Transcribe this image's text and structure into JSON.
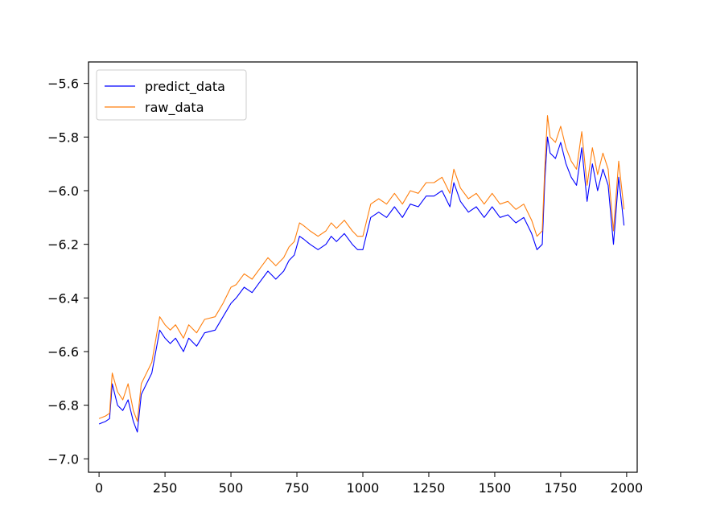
{
  "chart_data": {
    "type": "line",
    "title": "",
    "xlabel": "",
    "ylabel": "",
    "xlim": [
      -40,
      2040
    ],
    "ylim": [
      -7.05,
      -5.52
    ],
    "xticks": [
      0,
      250,
      500,
      750,
      1000,
      1250,
      1500,
      1750,
      2000
    ],
    "yticks": [
      -7.0,
      -6.8,
      -6.6,
      -6.4,
      -6.2,
      -6.0,
      -5.8,
      -5.6
    ],
    "xtick_labels": [
      "0",
      "250",
      "500",
      "750",
      "1000",
      "1250",
      "1500",
      "1750",
      "2000"
    ],
    "ytick_labels": [
      "−7.0",
      "−6.8",
      "−6.6",
      "−6.4",
      "−6.2",
      "−6.0",
      "−5.8",
      "−5.6"
    ],
    "grid": false,
    "legend_position": "top-left",
    "series": [
      {
        "name": "predict_data",
        "color": "#0000ff",
        "x": [
          0,
          25,
          40,
          50,
          70,
          90,
          110,
          130,
          145,
          160,
          180,
          200,
          230,
          250,
          270,
          290,
          320,
          340,
          370,
          400,
          440,
          470,
          500,
          520,
          550,
          580,
          610,
          640,
          670,
          700,
          720,
          740,
          760,
          775,
          800,
          830,
          860,
          880,
          900,
          930,
          960,
          980,
          1000,
          1030,
          1060,
          1090,
          1120,
          1150,
          1180,
          1210,
          1240,
          1270,
          1300,
          1330,
          1345,
          1370,
          1400,
          1430,
          1460,
          1490,
          1520,
          1550,
          1580,
          1610,
          1640,
          1660,
          1680,
          1690,
          1700,
          1710,
          1730,
          1750,
          1770,
          1790,
          1810,
          1830,
          1850,
          1870,
          1890,
          1910,
          1930,
          1950,
          1970,
          1990
        ],
        "y": [
          -6.87,
          -6.86,
          -6.85,
          -6.72,
          -6.8,
          -6.82,
          -6.78,
          -6.86,
          -6.9,
          -6.76,
          -6.72,
          -6.68,
          -6.52,
          -6.55,
          -6.57,
          -6.55,
          -6.6,
          -6.55,
          -6.58,
          -6.53,
          -6.52,
          -6.47,
          -6.42,
          -6.4,
          -6.36,
          -6.38,
          -6.34,
          -6.3,
          -6.33,
          -6.3,
          -6.26,
          -6.24,
          -6.17,
          -6.18,
          -6.2,
          -6.22,
          -6.2,
          -6.17,
          -6.19,
          -6.16,
          -6.2,
          -6.22,
          -6.22,
          -6.1,
          -6.08,
          -6.1,
          -6.06,
          -6.1,
          -6.05,
          -6.06,
          -6.02,
          -6.02,
          -6.0,
          -6.06,
          -5.97,
          -6.04,
          -6.08,
          -6.06,
          -6.1,
          -6.06,
          -6.1,
          -6.09,
          -6.12,
          -6.1,
          -6.16,
          -6.22,
          -6.2,
          -5.96,
          -5.8,
          -5.86,
          -5.88,
          -5.82,
          -5.9,
          -5.95,
          -5.98,
          -5.84,
          -6.04,
          -5.9,
          -6.0,
          -5.92,
          -5.98,
          -6.2,
          -5.95,
          -6.13
        ]
      },
      {
        "name": "raw_data",
        "color": "#ff7f0e",
        "x": [
          0,
          25,
          40,
          50,
          70,
          90,
          110,
          130,
          145,
          160,
          180,
          200,
          230,
          250,
          270,
          290,
          320,
          340,
          370,
          400,
          440,
          470,
          500,
          520,
          550,
          580,
          610,
          640,
          670,
          700,
          720,
          740,
          760,
          775,
          800,
          830,
          860,
          880,
          900,
          930,
          960,
          980,
          1000,
          1030,
          1060,
          1090,
          1120,
          1150,
          1180,
          1210,
          1240,
          1270,
          1300,
          1330,
          1345,
          1370,
          1400,
          1430,
          1460,
          1490,
          1520,
          1550,
          1580,
          1610,
          1640,
          1660,
          1680,
          1690,
          1700,
          1710,
          1730,
          1750,
          1770,
          1790,
          1810,
          1830,
          1850,
          1870,
          1890,
          1910,
          1930,
          1950,
          1970,
          1990
        ],
        "y": [
          -6.85,
          -6.84,
          -6.83,
          -6.68,
          -6.75,
          -6.78,
          -6.72,
          -6.82,
          -6.86,
          -6.72,
          -6.68,
          -6.64,
          -6.47,
          -6.5,
          -6.52,
          -6.5,
          -6.55,
          -6.5,
          -6.53,
          -6.48,
          -6.47,
          -6.42,
          -6.36,
          -6.35,
          -6.31,
          -6.33,
          -6.29,
          -6.25,
          -6.28,
          -6.25,
          -6.21,
          -6.19,
          -6.12,
          -6.13,
          -6.15,
          -6.17,
          -6.15,
          -6.12,
          -6.14,
          -6.11,
          -6.15,
          -6.17,
          -6.17,
          -6.05,
          -6.03,
          -6.05,
          -6.01,
          -6.05,
          -6.0,
          -6.01,
          -5.97,
          -5.97,
          -5.95,
          -6.01,
          -5.92,
          -5.99,
          -6.03,
          -6.01,
          -6.05,
          -6.01,
          -6.05,
          -6.04,
          -6.07,
          -6.05,
          -6.11,
          -6.17,
          -6.15,
          -5.91,
          -5.72,
          -5.8,
          -5.82,
          -5.76,
          -5.84,
          -5.89,
          -5.92,
          -5.78,
          -5.98,
          -5.84,
          -5.94,
          -5.86,
          -5.92,
          -6.15,
          -5.89,
          -6.07
        ]
      }
    ]
  }
}
